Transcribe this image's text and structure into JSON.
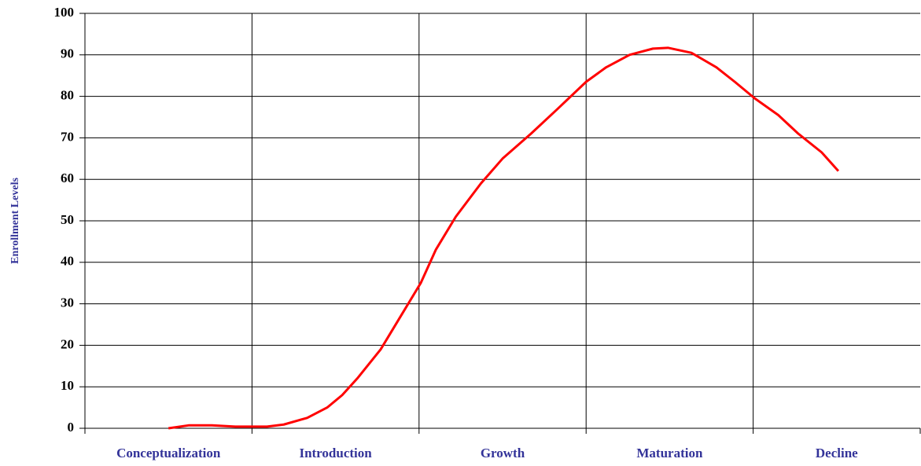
{
  "chart_data": {
    "type": "line",
    "ylabel": "Enrollment Levels",
    "categories": [
      "Conceptualization",
      "Introduction",
      "Growth",
      "Maturation",
      "Decline"
    ],
    "xlim": [
      0,
      5
    ],
    "x": [
      0.5,
      0.62,
      0.76,
      0.9,
      1.09,
      1.19,
      1.33,
      1.45,
      1.54,
      1.63,
      1.77,
      1.89,
      2.01,
      2.1,
      2.22,
      2.37,
      2.5,
      2.67,
      2.83,
      3.0,
      3.12,
      3.26,
      3.4,
      3.49,
      3.63,
      3.78,
      3.89,
      4.01,
      4.15,
      4.27,
      4.41,
      4.51
    ],
    "series": [
      {
        "color": "#ff0000",
        "values": [
          0,
          0.7,
          0.7,
          0.4,
          0.4,
          0.9,
          2.5,
          5,
          8,
          12,
          19,
          27,
          35,
          43,
          51,
          59,
          65,
          71,
          77,
          83.5,
          87,
          90,
          91.5,
          91.7,
          90.5,
          87,
          83.5,
          79.5,
          75.5,
          71,
          66.5,
          62
        ]
      }
    ],
    "ylim": [
      0,
      100
    ],
    "yticks": [
      0,
      10,
      20,
      30,
      40,
      50,
      60,
      70,
      80,
      90,
      100
    ],
    "grid": true
  }
}
